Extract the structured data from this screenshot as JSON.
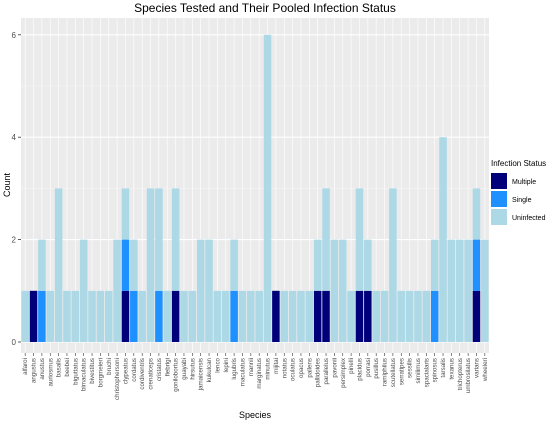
{
  "chart_data": {
    "type": "bar",
    "stacked": true,
    "title": "Species Tested and Their Pooled Infection Status",
    "xlabel": "Species",
    "ylabel": "Count",
    "ylim": [
      0,
      6.2
    ],
    "yticks": [
      0,
      2,
      4,
      6
    ],
    "grid": true,
    "legend_title": "Infection Status",
    "legend_position": "right",
    "categories": [
      "alfaroi",
      "angustus",
      "anustus",
      "auriosmus",
      "basalis",
      "beebei",
      "biguttatus",
      "bimaculatus",
      "bivestitus",
      "borgmeieri",
      "bruchi",
      "christophersoni",
      "clypeatus",
      "cordatus",
      "cordiventris",
      "crenaticeps",
      "cristatus",
      "fiebrigi",
      "gonilobortus",
      "guayabi",
      "hirsutus",
      "jamaicensis",
      "kukulcan",
      "lenco",
      "lepini",
      "lugubris",
      "maculatus",
      "mannii",
      "marginatus",
      "minutus",
      "mijitai",
      "notatus",
      "oculatus",
      "opacus",
      "pallens",
      "pallidoides",
      "parallelus",
      "pavonii",
      "persimplex",
      "pinelli",
      "placidus",
      "porrasi",
      "pusillus",
      "ramiphilus",
      "scutellatus",
      "serratipes",
      "sessilis",
      "similimus",
      "spacialaris",
      "spinosus",
      "tarsalis",
      "texanus",
      "trichopterus",
      "umbrosilatus",
      "varians",
      "wheeleri"
    ],
    "series": [
      {
        "name": "Multiple",
        "color": "#00007A",
        "values": [
          0,
          1,
          0,
          0,
          0,
          0,
          0,
          0,
          0,
          0,
          0,
          0,
          1,
          0,
          0,
          0,
          0,
          0,
          1,
          0,
          0,
          0,
          0,
          0,
          0,
          0,
          0,
          0,
          0,
          0,
          1,
          0,
          0,
          0,
          0,
          1,
          1,
          0,
          0,
          0,
          1,
          1,
          0,
          0,
          0,
          0,
          0,
          0,
          0,
          0,
          0,
          0,
          0,
          0,
          1,
          0
        ]
      },
      {
        "name": "Single",
        "color": "#1E90FF",
        "values": [
          0,
          0,
          1,
          0,
          0,
          0,
          0,
          0,
          0,
          0,
          0,
          0,
          1,
          1,
          0,
          0,
          1,
          0,
          0,
          0,
          0,
          0,
          0,
          0,
          0,
          1,
          0,
          0,
          0,
          0,
          0,
          0,
          0,
          0,
          0,
          0,
          0,
          0,
          0,
          0,
          0,
          0,
          0,
          0,
          0,
          0,
          0,
          0,
          0,
          1,
          0,
          0,
          0,
          0,
          1,
          0
        ]
      },
      {
        "name": "Uninfected",
        "color": "#ADD8E6",
        "values": [
          1,
          0,
          1,
          1,
          3,
          1,
          1,
          2,
          1,
          1,
          1,
          2,
          1,
          1,
          1,
          3,
          2,
          1,
          2,
          1,
          1,
          2,
          2,
          1,
          1,
          1,
          1,
          1,
          1,
          6,
          0,
          1,
          1,
          1,
          1,
          1,
          2,
          2,
          2,
          1,
          2,
          1,
          1,
          1,
          3,
          1,
          1,
          1,
          1,
          1,
          4,
          2,
          2,
          2,
          1,
          2
        ]
      }
    ]
  }
}
